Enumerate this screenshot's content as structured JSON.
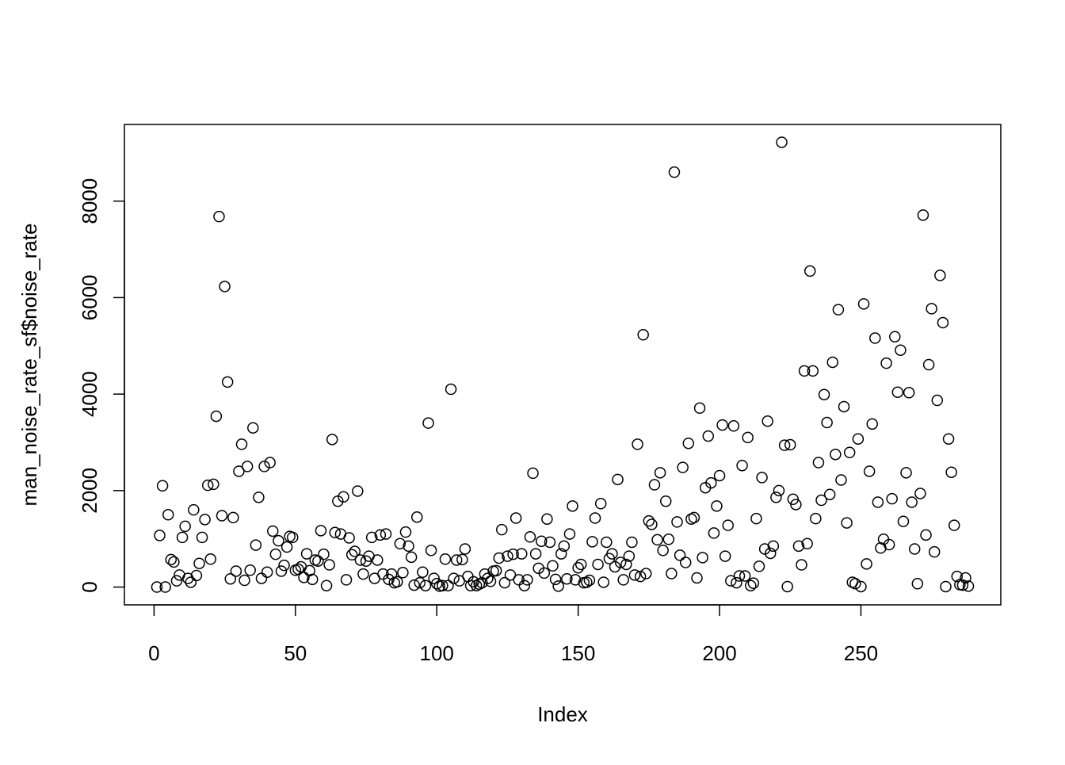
{
  "chart_data": {
    "type": "scatter",
    "x_label": "Index",
    "y_label": "man_noise_rate_sf$noise_rate",
    "color": "#000000",
    "xlim": [
      -10.48,
      299.48
    ],
    "xticks": [
      0,
      50,
      100,
      150,
      200,
      250
    ],
    "ylim": [
      -368.8,
      9588.8
    ],
    "yticks": [
      0,
      2000,
      4000,
      6000,
      8000
    ],
    "x": [
      1,
      2,
      3,
      4,
      5,
      6,
      7,
      8,
      9,
      10,
      11,
      12,
      13,
      14,
      15,
      16,
      17,
      18,
      19,
      20,
      21,
      22,
      23,
      24,
      25,
      26,
      27,
      28,
      29,
      30,
      31,
      32,
      33,
      34,
      35,
      36,
      37,
      38,
      39,
      40,
      41,
      42,
      43,
      44,
      45,
      46,
      47,
      48,
      49,
      50,
      51,
      52,
      53,
      54,
      55,
      56,
      57,
      58,
      59,
      60,
      61,
      62,
      63,
      64,
      65,
      66,
      67,
      68,
      69,
      70,
      71,
      72,
      73,
      74,
      75,
      76,
      77,
      78,
      79,
      80,
      81,
      82,
      83,
      84,
      85,
      86,
      87,
      88,
      89,
      90,
      91,
      92,
      93,
      94,
      95,
      96,
      97,
      98,
      99,
      100,
      101,
      102,
      103,
      104,
      105,
      106,
      107,
      108,
      109,
      110,
      111,
      112,
      113,
      114,
      115,
      116,
      117,
      118,
      119,
      120,
      121,
      122,
      123,
      124,
      125,
      126,
      127,
      128,
      129,
      130,
      131,
      132,
      133,
      134,
      135,
      136,
      137,
      138,
      139,
      140,
      141,
      142,
      143,
      144,
      145,
      146,
      147,
      148,
      149,
      150,
      151,
      152,
      153,
      154,
      155,
      156,
      157,
      158,
      159,
      160,
      161,
      162,
      163,
      164,
      165,
      166,
      167,
      168,
      169,
      170,
      171,
      172,
      173,
      174,
      175,
      176,
      177,
      178,
      179,
      180,
      181,
      182,
      183,
      184,
      185,
      186,
      187,
      188,
      189,
      190,
      191,
      192,
      193,
      194,
      195,
      196,
      197,
      198,
      199,
      200,
      201,
      202,
      203,
      204,
      205,
      206,
      207,
      208,
      209,
      210,
      211,
      212,
      213,
      214,
      215,
      216,
      217,
      218,
      219,
      220,
      221,
      222,
      223,
      224,
      225,
      226,
      227,
      228,
      229,
      230,
      231,
      232,
      233,
      234,
      235,
      236,
      237,
      238,
      239,
      240,
      241,
      242,
      243,
      244,
      245,
      246,
      247,
      248,
      249,
      250,
      251,
      252,
      253,
      254,
      255,
      256,
      257,
      258,
      259,
      260,
      261,
      262,
      263,
      264,
      265,
      266,
      267,
      268,
      269,
      270,
      271,
      272,
      273,
      274,
      275,
      276,
      277,
      278,
      279,
      280,
      281,
      282,
      283,
      284,
      285,
      286,
      287,
      288
    ],
    "values": [
      0,
      1070,
      2100,
      0,
      1500,
      570,
      520,
      130,
      250,
      1030,
      1260,
      180,
      100,
      1600,
      240,
      490,
      1030,
      1400,
      2110,
      580,
      2130,
      3540,
      7680,
      1480,
      6230,
      4250,
      170,
      1440,
      330,
      2400,
      2960,
      140,
      2500,
      350,
      3300,
      870,
      1860,
      180,
      2500,
      310,
      2580,
      1160,
      680,
      960,
      330,
      450,
      830,
      1050,
      1030,
      350,
      370,
      420,
      200,
      690,
      340,
      160,
      560,
      540,
      1170,
      680,
      30,
      460,
      3060,
      1130,
      1780,
      1100,
      1870,
      150,
      1020,
      670,
      740,
      1990,
      560,
      270,
      540,
      640,
      1030,
      180,
      560,
      1080,
      270,
      1100,
      160,
      270,
      90,
      110,
      900,
      300,
      1140,
      850,
      620,
      40,
      1450,
      90,
      310,
      30,
      3400,
      760,
      180,
      70,
      20,
      30,
      580,
      30,
      4100,
      180,
      560,
      130,
      570,
      790,
      220,
      30,
      110,
      30,
      60,
      90,
      270,
      180,
      120,
      330,
      340,
      600,
      1190,
      90,
      640,
      250,
      680,
      1430,
      150,
      690,
      30,
      150,
      1040,
      2360,
      690,
      390,
      950,
      290,
      1410,
      930,
      440,
      160,
      20,
      690,
      850,
      170,
      1100,
      1680,
      150,
      400,
      470,
      90,
      100,
      140,
      940,
      1430,
      470,
      1730,
      100,
      930,
      590,
      690,
      420,
      2230,
      510,
      150,
      470,
      640,
      930,
      250,
      2960,
      220,
      5230,
      280,
      1370,
      1300,
      2120,
      980,
      2370,
      760,
      1780,
      990,
      280,
      8600,
      1350,
      660,
      2480,
      510,
      2980,
      1410,
      1440,
      190,
      3710,
      610,
      2060,
      3130,
      2160,
      1120,
      1680,
      2310,
      3360,
      640,
      1280,
      130,
      3340,
      90,
      230,
      2520,
      230,
      3100,
      30,
      80,
      1420,
      430,
      2270,
      790,
      3440,
      700,
      850,
      1860,
      2000,
      9220,
      2940,
      10,
      2950,
      1820,
      1710,
      850,
      460,
      4480,
      900,
      6550,
      4480,
      1420,
      2580,
      1800,
      3990,
      3410,
      1920,
      4660,
      2750,
      5750,
      2220,
      3740,
      1330,
      2790,
      100,
      70,
      3070,
      10,
      5870,
      480,
      2400,
      3380,
      5160,
      1760,
      810,
      990,
      4640,
      880,
      1830,
      5190,
      4040,
      4910,
      1360,
      2370,
      4030,
      1760,
      790,
      70,
      1940,
      7710,
      1080,
      4610,
      5770,
      730,
      3870,
      6460,
      5480,
      10,
      3070,
      2380,
      1280,
      220,
      50,
      40,
      190,
      20
    ]
  }
}
